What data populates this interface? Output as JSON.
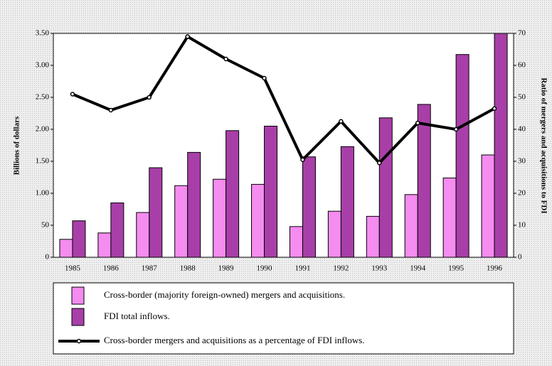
{
  "chart_data": {
    "type": "bar_line",
    "ylabel": "Billions of dollars",
    "y2label": "Ratio of mergers and acquisitions to FDI",
    "categories": [
      "1985",
      "1986",
      "1987",
      "1988",
      "1989",
      "1990",
      "1991",
      "1992",
      "1993",
      "1994",
      "1995",
      "1996"
    ],
    "series": [
      {
        "name": "Cross-border (majority foreign-owned) mergers and acquisitions.",
        "type": "bar",
        "color": "#f58cf0",
        "values": [
          28,
          38,
          70,
          112,
          122,
          114,
          48,
          72,
          64,
          98,
          124,
          160
        ]
      },
      {
        "name": "FDI total inflows.",
        "type": "bar",
        "color": "#a83fa8",
        "values": [
          57,
          85,
          140,
          164,
          198,
          205,
          157,
          173,
          218,
          239,
          317,
          350
        ]
      },
      {
        "name": "Cross-border mergers and acquisitions as a percentage of FDI inflows.",
        "type": "line",
        "axis": "y2",
        "color": "#000000",
        "values": [
          51,
          46,
          50,
          69,
          62,
          56,
          30.5,
          42.5,
          29.5,
          42,
          40,
          46.5
        ]
      }
    ],
    "ylim": [
      0,
      350
    ],
    "yticks": [
      0,
      50,
      {
        "value": 100,
        "label": "1.00"
      },
      {
        "value": 150,
        "label": "1.50"
      },
      {
        "value": 200,
        "label": "2.00"
      },
      {
        "value": 250,
        "label": "2.50"
      },
      {
        "value": 300,
        "label": "3.00"
      },
      {
        "value": 350,
        "label": "3.50"
      }
    ],
    "y2lim": [
      0,
      70
    ],
    "y2ticks": [
      0,
      10,
      20,
      30,
      40,
      50,
      60,
      70
    ],
    "grid": false
  }
}
